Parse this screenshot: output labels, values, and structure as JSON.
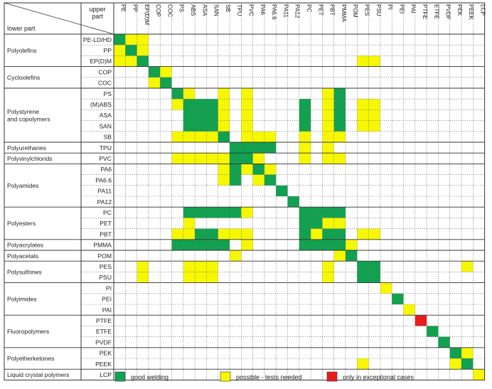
{
  "chart_data": {
    "type": "heatmap",
    "corner": {
      "upper": "upper part",
      "lower": "lower part"
    },
    "columns": [
      "PE",
      "PP",
      "EP(D)M",
      "COP",
      "COC",
      "PS",
      "ABS",
      "ASA",
      "SAN",
      "SB",
      "TPU",
      "PVC",
      "PA6",
      "PA6.6",
      "PA11",
      "PA12",
      "PC",
      "PET",
      "PBT",
      "PMMA",
      "POM",
      "PES",
      "PSU",
      "PI",
      "PEI",
      "PAI",
      "PTFE",
      "ETFE",
      "PVDF",
      "PEK",
      "PEEK",
      "LCP"
    ],
    "rows": [
      "PE-LD/HD",
      "PP",
      "EP(D)M",
      "COP",
      "COC",
      "PS",
      "(M)ABS",
      "ASA",
      "SAN",
      "SB",
      "TPU",
      "PVC",
      "PA6",
      "PA6.6",
      "PA11",
      "PA12",
      "PC",
      "PET",
      "PBT",
      "PMMA",
      "POM",
      "PES",
      "PSU",
      "PI",
      "PEI",
      "PAI",
      "PTFE",
      "ETFE",
      "PVDF",
      "PEK",
      "PEEK",
      "LCP"
    ],
    "groups": [
      {
        "name": "Polyolefins",
        "rows": [
          0,
          2
        ]
      },
      {
        "name": "Cycloolefins",
        "rows": [
          3,
          4
        ]
      },
      {
        "name": "Polystyrene and copolymers",
        "rows": [
          5,
          9
        ]
      },
      {
        "name": "Polyurethanes",
        "rows": [
          10,
          10
        ]
      },
      {
        "name": "Polyvinylchlorids",
        "rows": [
          11,
          11
        ]
      },
      {
        "name": "Polyamides",
        "rows": [
          12,
          15
        ]
      },
      {
        "name": "Polyesters",
        "rows": [
          16,
          18
        ]
      },
      {
        "name": "Polyacrylates",
        "rows": [
          19,
          19
        ]
      },
      {
        "name": "Polyacetals",
        "rows": [
          20,
          20
        ]
      },
      {
        "name": "Polysulfones",
        "rows": [
          21,
          22
        ]
      },
      {
        "name": "Polyimides",
        "rows": [
          23,
          25
        ]
      },
      {
        "name": "Fluoropolymers",
        "rows": [
          26,
          28
        ]
      },
      {
        "name": "Polyetherketones",
        "rows": [
          29,
          30
        ]
      },
      {
        "name": "Liquid crystal polymers",
        "rows": [
          31,
          31
        ]
      }
    ],
    "legend": [
      {
        "value": 2,
        "label": "good welding",
        "color": "#12a150"
      },
      {
        "value": 1,
        "label": "possible - tests needed",
        "color": "#f7f700"
      },
      {
        "value": 3,
        "label": "only in exceptional cases",
        "color": "#e81c1c"
      }
    ],
    "matrix": [
      [
        2,
        1,
        1,
        0,
        0,
        0,
        0,
        0,
        0,
        0,
        0,
        0,
        0,
        0,
        0,
        0,
        0,
        0,
        0,
        0,
        0,
        0,
        0,
        0,
        0,
        0,
        0,
        0,
        0,
        0,
        0,
        0
      ],
      [
        1,
        2,
        1,
        0,
        0,
        0,
        0,
        0,
        0,
        0,
        0,
        0,
        0,
        0,
        0,
        0,
        0,
        0,
        0,
        0,
        0,
        0,
        0,
        0,
        0,
        0,
        0,
        0,
        0,
        0,
        0,
        0
      ],
      [
        1,
        1,
        2,
        0,
        0,
        0,
        0,
        0,
        0,
        0,
        0,
        0,
        0,
        0,
        0,
        0,
        0,
        0,
        0,
        0,
        0,
        1,
        1,
        0,
        0,
        0,
        0,
        0,
        0,
        0,
        0,
        0
      ],
      [
        0,
        0,
        0,
        2,
        1,
        0,
        0,
        0,
        0,
        0,
        0,
        0,
        0,
        0,
        0,
        0,
        0,
        0,
        0,
        0,
        0,
        0,
        0,
        0,
        0,
        0,
        0,
        0,
        0,
        0,
        0,
        0
      ],
      [
        0,
        0,
        0,
        1,
        2,
        0,
        0,
        0,
        0,
        0,
        0,
        0,
        0,
        0,
        0,
        0,
        0,
        0,
        0,
        0,
        0,
        0,
        0,
        0,
        0,
        0,
        0,
        0,
        0,
        0,
        0,
        0
      ],
      [
        0,
        0,
        0,
        0,
        0,
        2,
        1,
        0,
        0,
        1,
        0,
        1,
        0,
        0,
        0,
        0,
        0,
        0,
        1,
        2,
        0,
        0,
        0,
        0,
        0,
        0,
        0,
        0,
        0,
        0,
        0,
        0
      ],
      [
        0,
        0,
        0,
        0,
        0,
        1,
        2,
        2,
        2,
        1,
        0,
        1,
        0,
        0,
        0,
        0,
        2,
        0,
        1,
        2,
        0,
        1,
        1,
        0,
        0,
        0,
        0,
        0,
        0,
        0,
        0,
        0
      ],
      [
        0,
        0,
        0,
        0,
        0,
        0,
        2,
        2,
        2,
        1,
        0,
        1,
        0,
        0,
        0,
        0,
        2,
        0,
        1,
        2,
        0,
        1,
        1,
        0,
        0,
        0,
        0,
        0,
        0,
        0,
        0,
        0
      ],
      [
        0,
        0,
        0,
        0,
        0,
        0,
        2,
        2,
        2,
        1,
        0,
        1,
        0,
        0,
        0,
        0,
        2,
        0,
        1,
        2,
        0,
        1,
        1,
        0,
        0,
        0,
        0,
        0,
        0,
        0,
        0,
        0
      ],
      [
        0,
        0,
        0,
        0,
        0,
        1,
        1,
        1,
        1,
        2,
        0,
        1,
        1,
        1,
        0,
        0,
        1,
        0,
        1,
        1,
        0,
        0,
        0,
        0,
        0,
        0,
        0,
        0,
        0,
        0,
        0,
        0
      ],
      [
        0,
        0,
        0,
        0,
        0,
        0,
        0,
        0,
        0,
        0,
        2,
        2,
        2,
        2,
        0,
        0,
        1,
        0,
        1,
        0,
        0,
        0,
        0,
        0,
        0,
        0,
        0,
        0,
        0,
        0,
        0,
        0
      ],
      [
        0,
        0,
        0,
        0,
        0,
        1,
        1,
        1,
        1,
        1,
        2,
        2,
        1,
        0,
        0,
        0,
        1,
        0,
        1,
        1,
        0,
        0,
        0,
        0,
        0,
        0,
        0,
        0,
        0,
        0,
        0,
        0
      ],
      [
        0,
        0,
        0,
        0,
        0,
        0,
        0,
        0,
        0,
        1,
        2,
        1,
        2,
        1,
        0,
        0,
        0,
        0,
        0,
        0,
        0,
        0,
        0,
        0,
        0,
        0,
        0,
        0,
        0,
        0,
        0,
        0
      ],
      [
        0,
        0,
        0,
        0,
        0,
        0,
        0,
        0,
        0,
        1,
        2,
        0,
        1,
        2,
        0,
        0,
        0,
        0,
        0,
        0,
        0,
        0,
        0,
        0,
        0,
        0,
        0,
        0,
        0,
        0,
        0,
        0
      ],
      [
        0,
        0,
        0,
        0,
        0,
        0,
        0,
        0,
        0,
        0,
        0,
        0,
        0,
        0,
        2,
        0,
        0,
        0,
        0,
        0,
        0,
        0,
        0,
        0,
        0,
        0,
        0,
        0,
        0,
        0,
        0,
        0
      ],
      [
        0,
        0,
        0,
        0,
        0,
        0,
        0,
        0,
        0,
        0,
        0,
        0,
        0,
        0,
        0,
        2,
        0,
        0,
        0,
        0,
        0,
        0,
        0,
        0,
        0,
        0,
        0,
        0,
        0,
        0,
        0,
        0
      ],
      [
        0,
        0,
        0,
        0,
        0,
        0,
        2,
        2,
        2,
        2,
        2,
        1,
        0,
        0,
        0,
        0,
        2,
        2,
        2,
        2,
        0,
        0,
        0,
        0,
        0,
        0,
        0,
        0,
        0,
        0,
        0,
        0
      ],
      [
        0,
        0,
        0,
        0,
        0,
        0,
        1,
        0,
        0,
        0,
        0,
        0,
        0,
        0,
        0,
        0,
        2,
        2,
        1,
        1,
        0,
        0,
        0,
        0,
        0,
        0,
        0,
        0,
        0,
        0,
        0,
        0
      ],
      [
        0,
        0,
        0,
        0,
        0,
        1,
        1,
        2,
        2,
        1,
        1,
        1,
        0,
        0,
        0,
        0,
        2,
        1,
        2,
        2,
        0,
        1,
        1,
        0,
        0,
        0,
        0,
        0,
        0,
        0,
        0,
        0
      ],
      [
        0,
        0,
        0,
        0,
        0,
        2,
        2,
        2,
        2,
        2,
        0,
        1,
        0,
        0,
        0,
        0,
        2,
        2,
        2,
        2,
        1,
        0,
        0,
        0,
        0,
        0,
        0,
        0,
        0,
        0,
        0,
        0
      ],
      [
        0,
        0,
        0,
        0,
        0,
        0,
        0,
        0,
        0,
        0,
        1,
        0,
        0,
        0,
        0,
        0,
        0,
        0,
        0,
        1,
        2,
        0,
        0,
        0,
        0,
        0,
        0,
        0,
        0,
        0,
        0,
        0
      ],
      [
        0,
        0,
        1,
        0,
        0,
        0,
        1,
        1,
        1,
        0,
        0,
        0,
        0,
        0,
        0,
        0,
        0,
        0,
        1,
        0,
        0,
        2,
        2,
        0,
        0,
        0,
        0,
        0,
        0,
        0,
        1,
        0
      ],
      [
        0,
        0,
        1,
        0,
        0,
        0,
        1,
        1,
        1,
        0,
        0,
        0,
        0,
        0,
        0,
        0,
        0,
        0,
        1,
        0,
        0,
        2,
        2,
        0,
        0,
        0,
        0,
        0,
        0,
        0,
        0,
        0
      ],
      [
        0,
        0,
        0,
        0,
        0,
        0,
        0,
        0,
        0,
        0,
        0,
        0,
        0,
        0,
        0,
        0,
        0,
        0,
        0,
        0,
        0,
        0,
        0,
        1,
        0,
        0,
        0,
        0,
        0,
        0,
        0,
        0
      ],
      [
        0,
        0,
        0,
        0,
        0,
        0,
        0,
        0,
        0,
        0,
        0,
        0,
        0,
        0,
        0,
        0,
        0,
        0,
        0,
        0,
        0,
        0,
        0,
        0,
        2,
        0,
        0,
        0,
        0,
        0,
        0,
        0
      ],
      [
        0,
        0,
        0,
        0,
        0,
        0,
        0,
        0,
        0,
        0,
        0,
        0,
        0,
        0,
        0,
        0,
        0,
        0,
        0,
        0,
        0,
        0,
        0,
        0,
        0,
        1,
        0,
        0,
        0,
        0,
        0,
        0
      ],
      [
        0,
        0,
        0,
        0,
        0,
        0,
        0,
        0,
        0,
        0,
        0,
        0,
        0,
        0,
        0,
        0,
        0,
        0,
        0,
        0,
        0,
        0,
        0,
        0,
        0,
        0,
        3,
        0,
        0,
        0,
        0,
        0
      ],
      [
        0,
        0,
        0,
        0,
        0,
        0,
        0,
        0,
        0,
        0,
        0,
        0,
        0,
        0,
        0,
        0,
        0,
        0,
        0,
        0,
        0,
        0,
        0,
        0,
        0,
        0,
        0,
        2,
        0,
        0,
        0,
        0
      ],
      [
        0,
        0,
        0,
        0,
        0,
        0,
        0,
        0,
        0,
        0,
        0,
        0,
        0,
        0,
        0,
        0,
        0,
        0,
        0,
        0,
        0,
        0,
        0,
        0,
        0,
        0,
        0,
        0,
        2,
        0,
        0,
        0
      ],
      [
        0,
        0,
        0,
        0,
        0,
        0,
        0,
        0,
        0,
        0,
        0,
        0,
        0,
        0,
        0,
        0,
        0,
        0,
        0,
        0,
        0,
        0,
        0,
        0,
        0,
        0,
        0,
        0,
        0,
        2,
        1,
        0
      ],
      [
        0,
        0,
        0,
        0,
        0,
        0,
        0,
        0,
        0,
        0,
        0,
        0,
        0,
        0,
        0,
        0,
        0,
        0,
        0,
        0,
        0,
        1,
        0,
        0,
        0,
        0,
        0,
        0,
        0,
        1,
        2,
        0
      ],
      [
        0,
        0,
        0,
        0,
        0,
        0,
        0,
        0,
        0,
        0,
        0,
        0,
        0,
        0,
        0,
        0,
        0,
        0,
        0,
        0,
        0,
        0,
        0,
        0,
        0,
        0,
        0,
        0,
        0,
        0,
        0,
        1
      ]
    ]
  }
}
